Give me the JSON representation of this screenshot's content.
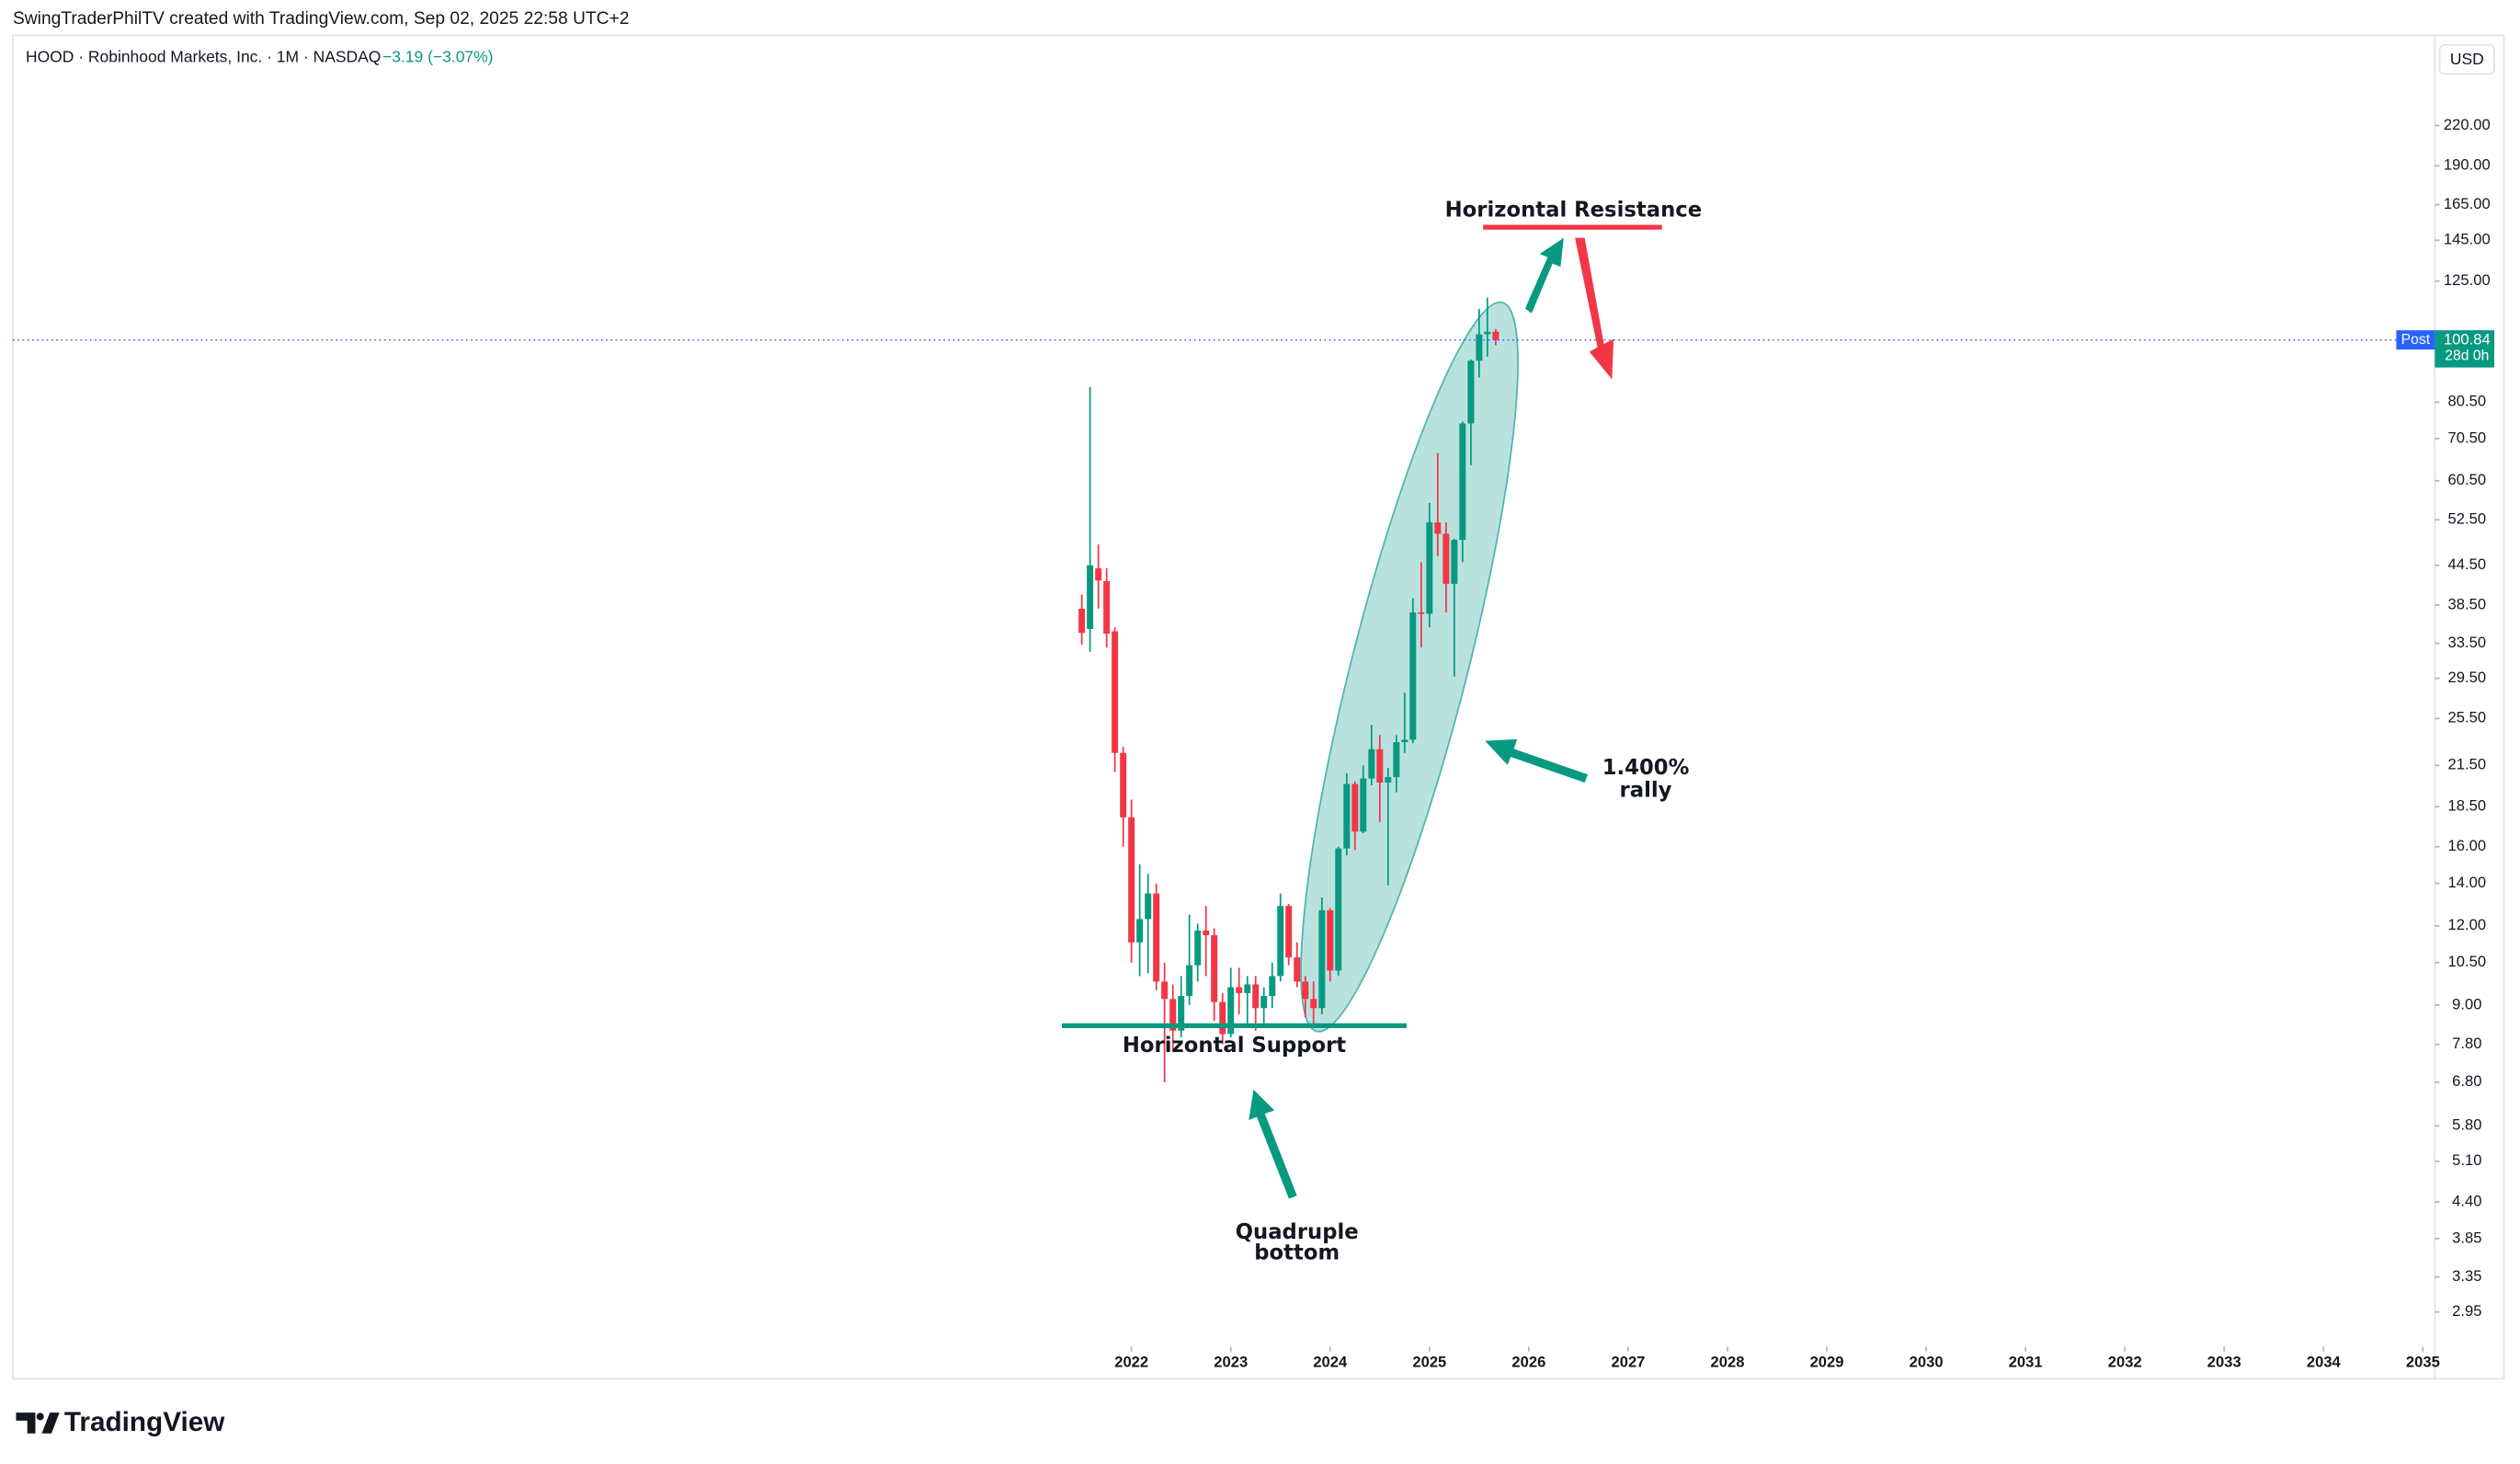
{
  "header": "SwingTraderPhilTV created with TradingView.com, Sep 02, 2025 22:58 UTC+2",
  "symbol_info": "HOOD · Robinhood Markets, Inc. · 1M · NASDAQ",
  "change": "−3.19 (−3.07%)",
  "currency": "USD",
  "brand": "TradingView",
  "chart_data": {
    "type": "candlestick",
    "log_scale": true,
    "grid": false,
    "up_color": "#089981",
    "down_color": "#f23645",
    "xlim": [
      2010.74,
      2035.12
    ],
    "xticks": [
      2022,
      2023,
      2024,
      2025,
      2026,
      2027,
      2028,
      2029,
      2030,
      2031,
      2032,
      2033,
      2034,
      2035
    ],
    "ylim": [
      2.6,
      300
    ],
    "yticks": [
      {
        "value": 220,
        "label": "220.00"
      },
      {
        "value": 190,
        "label": "190.00"
      },
      {
        "value": 165,
        "label": "165.00"
      },
      {
        "value": 145,
        "label": "145.00"
      },
      {
        "value": 125,
        "label": "125.00"
      },
      {
        "value": 80.5,
        "label": "80.50"
      },
      {
        "value": 70.5,
        "label": "70.50"
      },
      {
        "value": 60.5,
        "label": "60.50"
      },
      {
        "value": 52.5,
        "label": "52.50"
      },
      {
        "value": 44.5,
        "label": "44.50"
      },
      {
        "value": 38.5,
        "label": "38.50"
      },
      {
        "value": 33.5,
        "label": "33.50"
      },
      {
        "value": 29.5,
        "label": "29.50"
      },
      {
        "value": 25.5,
        "label": "25.50"
      },
      {
        "value": 21.5,
        "label": "21.50"
      },
      {
        "value": 18.5,
        "label": "18.50"
      },
      {
        "value": 16,
        "label": "16.00"
      },
      {
        "value": 14,
        "label": "14.00"
      },
      {
        "value": 12,
        "label": "12.00"
      },
      {
        "value": 10.5,
        "label": "10.50"
      },
      {
        "value": 9,
        "label": "9.00"
      },
      {
        "value": 7.8,
        "label": "7.80"
      },
      {
        "value": 6.8,
        "label": "6.80"
      },
      {
        "value": 5.8,
        "label": "5.80"
      },
      {
        "value": 5.1,
        "label": "5.10"
      },
      {
        "value": 4.4,
        "label": "4.40"
      },
      {
        "value": 3.85,
        "label": "3.85"
      },
      {
        "value": 3.35,
        "label": "3.35"
      },
      {
        "value": 2.95,
        "label": "2.95"
      }
    ],
    "x": [
      2021.5,
      2021.583,
      2021.667,
      2021.75,
      2021.833,
      2021.917,
      2022,
      2022.083,
      2022.167,
      2022.25,
      2022.333,
      2022.417,
      2022.5,
      2022.583,
      2022.667,
      2022.75,
      2022.833,
      2022.917,
      2023,
      2023.083,
      2023.167,
      2023.25,
      2023.333,
      2023.417,
      2023.5,
      2023.583,
      2023.667,
      2023.75,
      2023.833,
      2023.917,
      2024,
      2024.083,
      2024.167,
      2024.25,
      2024.333,
      2024.417,
      2024.5,
      2024.583,
      2024.667,
      2024.75,
      2024.833,
      2024.917,
      2025,
      2025.083,
      2025.167,
      2025.25,
      2025.333,
      2025.417,
      2025.5,
      2025.583,
      2025.667
    ],
    "open": [
      38,
      35.3,
      44,
      42,
      35,
      22.5,
      17.8,
      11.3,
      12.3,
      13.5,
      9.8,
      9.2,
      8.2,
      9.3,
      10.4,
      11.8,
      11.6,
      9.1,
      8.1,
      9.6,
      9.4,
      9.7,
      8.9,
      9.3,
      10,
      12.9,
      10.7,
      9.8,
      9.2,
      8.9,
      12.7,
      10.2,
      15.9,
      20.1,
      16.9,
      20.5,
      22.8,
      20.2,
      20.6,
      23.4,
      23.6,
      37.5,
      37.3,
      52,
      49.9,
      41.6,
      48.8,
      74.5,
      93.6,
      103,
      104
    ],
    "high": [
      40,
      85,
      48,
      44,
      35.5,
      23,
      19,
      15,
      14.5,
      14,
      10.5,
      9.7,
      10,
      12.5,
      12.1,
      12.9,
      11.9,
      9.4,
      10.3,
      10.3,
      10,
      10,
      9.6,
      10.5,
      13.5,
      13,
      11.3,
      10,
      9.8,
      13.3,
      12.8,
      16,
      20.9,
      20.3,
      21.5,
      24.9,
      24,
      21.3,
      24,
      28,
      39.5,
      45,
      55.8,
      66.9,
      52,
      49,
      75,
      94,
      113,
      117.7,
      105
    ],
    "low": [
      33.35,
      32.5,
      38,
      33,
      21,
      16,
      10.5,
      10,
      10.1,
      9.5,
      6.8,
      7.6,
      8,
      9,
      9.8,
      10,
      8.5,
      7.8,
      8,
      8.7,
      8.3,
      8.2,
      8.4,
      8.9,
      9.8,
      10.4,
      9.6,
      8.6,
      8.3,
      8.7,
      9.8,
      10,
      15.5,
      15.8,
      16.8,
      20,
      17.5,
      13.9,
      19.5,
      22.5,
      23.3,
      33,
      35.5,
      46,
      37.5,
      29.7,
      45,
      64,
      88,
      95,
      99
    ],
    "close": [
      34.8,
      44.5,
      42.1,
      34.7,
      22.5,
      17.8,
      11.3,
      12.3,
      13.5,
      9.8,
      9.2,
      8.2,
      9.3,
      10.4,
      11.8,
      11.6,
      9.1,
      8.1,
      9.6,
      9.4,
      9.7,
      8.9,
      9.3,
      10,
      12.9,
      10.7,
      9.8,
      9.2,
      8.9,
      12.7,
      10.2,
      15.9,
      20.1,
      16.9,
      20.5,
      22.8,
      20.2,
      20.6,
      23.4,
      23.6,
      37.5,
      37.3,
      52,
      49.9,
      41.6,
      48.8,
      74.5,
      93.6,
      103,
      104,
      100.84
    ],
    "post_price": {
      "name": "Post",
      "value": 100.93,
      "color": "#2962ff"
    },
    "last_price": {
      "value": 100.84,
      "countdown": "28d 0h",
      "color": "#089981"
    },
    "levels": [
      {
        "name": "Horizontal Resistance",
        "value": 152,
        "xrange": [
          2025.54,
          2027.34
        ],
        "color": "#f23645"
      },
      {
        "name": "Horizontal Support",
        "value": 8.35,
        "xrange": [
          2021.3,
          2024.77
        ],
        "color": "#089981"
      }
    ],
    "annotations": [
      [
        "1.400%",
        "rally"
      ],
      [
        "Quadruple",
        "bottom"
      ]
    ]
  }
}
